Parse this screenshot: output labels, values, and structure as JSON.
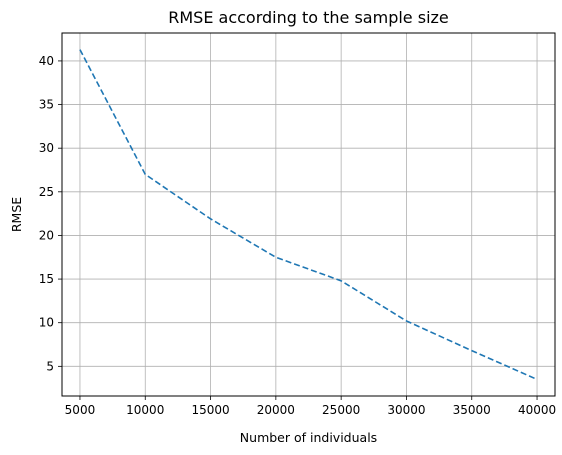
{
  "chart_data": {
    "type": "line",
    "title": "RMSE according to the sample size",
    "xlabel": "Number of individuals",
    "ylabel": "RMSE",
    "x": [
      5000,
      10000,
      15000,
      20000,
      25000,
      30000,
      35000,
      40000
    ],
    "series": [
      {
        "values": [
          41.3,
          27.0,
          21.9,
          17.5,
          14.8,
          10.2,
          6.8,
          3.5
        ],
        "color": "#1f77b4",
        "line_style": "dashed"
      }
    ],
    "xlim": [
      3625,
      41375
    ],
    "ylim": [
      1.6,
      43.2
    ],
    "xticks": [
      5000,
      10000,
      15000,
      20000,
      25000,
      30000,
      35000,
      40000
    ],
    "yticks": [
      5,
      10,
      15,
      20,
      25,
      30,
      35,
      40
    ],
    "grid": true,
    "grid_color": "#b0b0b0"
  }
}
